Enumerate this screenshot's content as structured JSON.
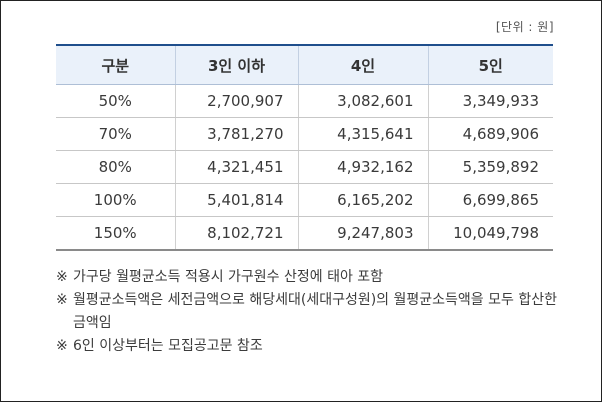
{
  "unit_label": "[단위 : 원]",
  "table": {
    "headers": [
      "구분",
      "3인 이하",
      "4인",
      "5인"
    ],
    "rows": [
      [
        "50%",
        "2,700,907",
        "3,082,601",
        "3,349,933"
      ],
      [
        "70%",
        "3,781,270",
        "4,315,641",
        "4,689,906"
      ],
      [
        "80%",
        "4,321,451",
        "4,932,162",
        "5,359,892"
      ],
      [
        "100%",
        "5,401,814",
        "6,165,202",
        "6,699,865"
      ],
      [
        "150%",
        "8,102,721",
        "9,247,803",
        "10,049,798"
      ]
    ]
  },
  "notes": [
    {
      "mark": "※",
      "text": "가구당 월평균소득 적용시 가구원수 산정에 태아 포함"
    },
    {
      "mark": "※",
      "text": "월평균소득액은 세전금액으로 해당세대(세대구성원)의 월평균소득액을 모두 합산한 금액임"
    },
    {
      "mark": "※",
      "text": "6인 이상부터는 모집공고문 참조"
    }
  ]
}
